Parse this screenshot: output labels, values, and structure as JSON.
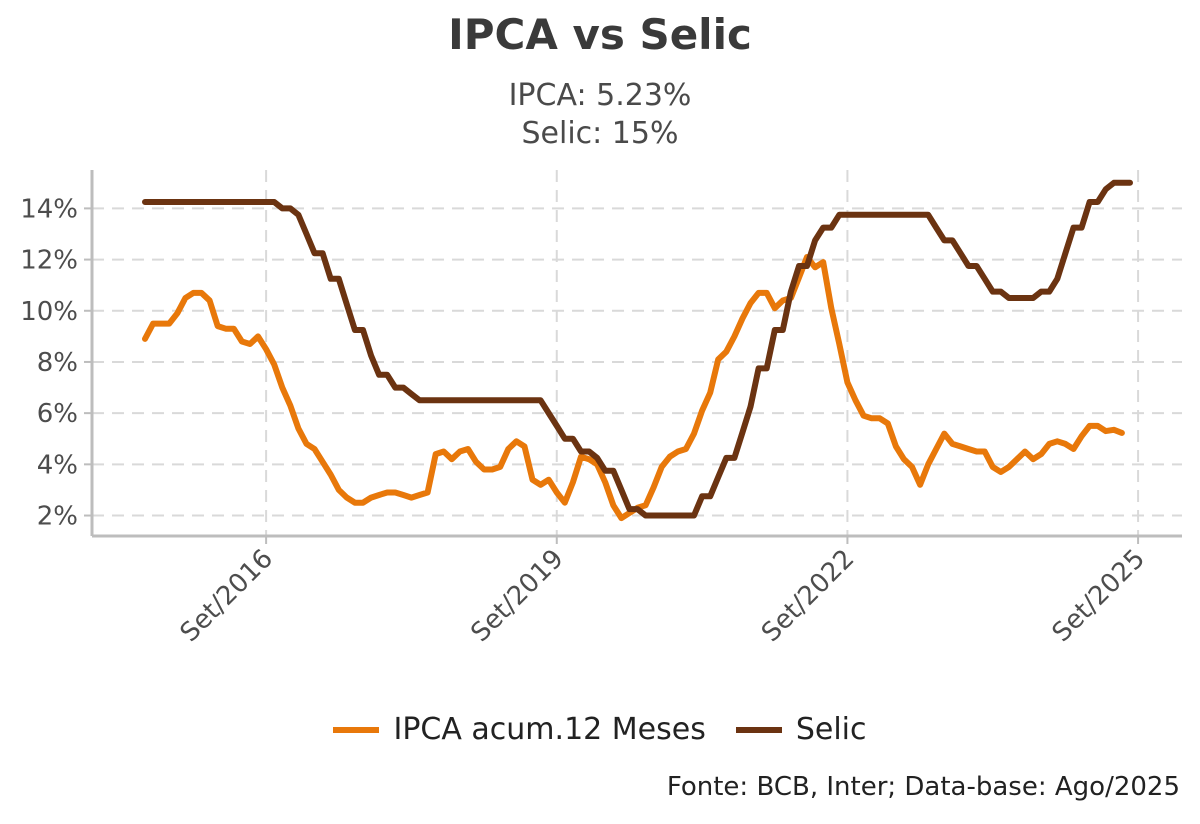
{
  "chart_data": {
    "type": "line",
    "title": "IPCA vs Selic",
    "subtitle_lines": [
      "IPCA: 5.23%",
      "Selic: 15%"
    ],
    "xlabel": "",
    "ylabel": "",
    "x_range": [
      "2015-06",
      "2025-08"
    ],
    "ylim": [
      1.2,
      15.5
    ],
    "y_ticks": [
      "2%",
      "4%",
      "6%",
      "8%",
      "10%",
      "12%",
      "14%"
    ],
    "y_tick_values": [
      2,
      4,
      6,
      8,
      10,
      12,
      14
    ],
    "x_ticks": [
      "Set/2016",
      "Set/2019",
      "Set/2022",
      "Set/2025"
    ],
    "x_tick_values": [
      "2016-09",
      "2019-09",
      "2022-09",
      "2025-09"
    ],
    "grid": true,
    "legend_position": "bottom",
    "colors": {
      "ipca": "#E8780A",
      "selic": "#6B3311",
      "grid": "#D9D9D9",
      "axis": "#BDBDBD"
    },
    "series": [
      {
        "name": "IPCA acum.12 Meses",
        "color": "#E8780A",
        "points": [
          [
            "2015-06",
            8.9
          ],
          [
            "2015-07",
            9.5
          ],
          [
            "2015-08",
            9.5
          ],
          [
            "2015-09",
            9.5
          ],
          [
            "2015-10",
            9.9
          ],
          [
            "2015-11",
            10.5
          ],
          [
            "2015-12",
            10.7
          ],
          [
            "2016-01",
            10.7
          ],
          [
            "2016-02",
            10.4
          ],
          [
            "2016-03",
            9.4
          ],
          [
            "2016-04",
            9.3
          ],
          [
            "2016-05",
            9.3
          ],
          [
            "2016-06",
            8.8
          ],
          [
            "2016-07",
            8.7
          ],
          [
            "2016-08",
            9.0
          ],
          [
            "2016-09",
            8.5
          ],
          [
            "2016-10",
            7.9
          ],
          [
            "2016-11",
            7.0
          ],
          [
            "2016-12",
            6.3
          ],
          [
            "2017-01",
            5.4
          ],
          [
            "2017-02",
            4.8
          ],
          [
            "2017-03",
            4.6
          ],
          [
            "2017-04",
            4.1
          ],
          [
            "2017-05",
            3.6
          ],
          [
            "2017-06",
            3.0
          ],
          [
            "2017-07",
            2.7
          ],
          [
            "2017-08",
            2.5
          ],
          [
            "2017-09",
            2.5
          ],
          [
            "2017-10",
            2.7
          ],
          [
            "2017-11",
            2.8
          ],
          [
            "2017-12",
            2.9
          ],
          [
            "2018-01",
            2.9
          ],
          [
            "2018-02",
            2.8
          ],
          [
            "2018-03",
            2.7
          ],
          [
            "2018-04",
            2.8
          ],
          [
            "2018-05",
            2.9
          ],
          [
            "2018-06",
            4.4
          ],
          [
            "2018-07",
            4.5
          ],
          [
            "2018-08",
            4.2
          ],
          [
            "2018-09",
            4.5
          ],
          [
            "2018-10",
            4.6
          ],
          [
            "2018-11",
            4.1
          ],
          [
            "2018-12",
            3.8
          ],
          [
            "2019-01",
            3.8
          ],
          [
            "2019-02",
            3.9
          ],
          [
            "2019-03",
            4.6
          ],
          [
            "2019-04",
            4.9
          ],
          [
            "2019-05",
            4.7
          ],
          [
            "2019-06",
            3.4
          ],
          [
            "2019-07",
            3.2
          ],
          [
            "2019-08",
            3.4
          ],
          [
            "2019-09",
            2.9
          ],
          [
            "2019-10",
            2.5
          ],
          [
            "2019-11",
            3.3
          ],
          [
            "2019-12",
            4.3
          ],
          [
            "2020-01",
            4.2
          ],
          [
            "2020-02",
            4.0
          ],
          [
            "2020-03",
            3.3
          ],
          [
            "2020-04",
            2.4
          ],
          [
            "2020-05",
            1.9
          ],
          [
            "2020-06",
            2.1
          ],
          [
            "2020-07",
            2.3
          ],
          [
            "2020-08",
            2.4
          ],
          [
            "2020-09",
            3.1
          ],
          [
            "2020-10",
            3.9
          ],
          [
            "2020-11",
            4.3
          ],
          [
            "2020-12",
            4.5
          ],
          [
            "2021-01",
            4.6
          ],
          [
            "2021-02",
            5.2
          ],
          [
            "2021-03",
            6.1
          ],
          [
            "2021-04",
            6.8
          ],
          [
            "2021-05",
            8.1
          ],
          [
            "2021-06",
            8.4
          ],
          [
            "2021-07",
            9.0
          ],
          [
            "2021-08",
            9.7
          ],
          [
            "2021-09",
            10.3
          ],
          [
            "2021-10",
            10.7
          ],
          [
            "2021-11",
            10.7
          ],
          [
            "2021-12",
            10.1
          ],
          [
            "2022-01",
            10.4
          ],
          [
            "2022-02",
            10.5
          ],
          [
            "2022-03",
            11.3
          ],
          [
            "2022-04",
            12.1
          ],
          [
            "2022-05",
            11.7
          ],
          [
            "2022-06",
            11.9
          ],
          [
            "2022-07",
            10.1
          ],
          [
            "2022-08",
            8.7
          ],
          [
            "2022-09",
            7.2
          ],
          [
            "2022-10",
            6.5
          ],
          [
            "2022-11",
            5.9
          ],
          [
            "2022-12",
            5.8
          ],
          [
            "2023-01",
            5.8
          ],
          [
            "2023-02",
            5.6
          ],
          [
            "2023-03",
            4.7
          ],
          [
            "2023-04",
            4.2
          ],
          [
            "2023-05",
            3.9
          ],
          [
            "2023-06",
            3.2
          ],
          [
            "2023-07",
            4.0
          ],
          [
            "2023-08",
            4.6
          ],
          [
            "2023-09",
            5.2
          ],
          [
            "2023-10",
            4.8
          ],
          [
            "2023-11",
            4.7
          ],
          [
            "2023-12",
            4.6
          ],
          [
            "2024-01",
            4.5
          ],
          [
            "2024-02",
            4.5
          ],
          [
            "2024-03",
            3.9
          ],
          [
            "2024-04",
            3.7
          ],
          [
            "2024-05",
            3.9
          ],
          [
            "2024-06",
            4.2
          ],
          [
            "2024-07",
            4.5
          ],
          [
            "2024-08",
            4.2
          ],
          [
            "2024-09",
            4.4
          ],
          [
            "2024-10",
            4.8
          ],
          [
            "2024-11",
            4.9
          ],
          [
            "2024-12",
            4.8
          ],
          [
            "2025-01",
            4.6
          ],
          [
            "2025-02",
            5.1
          ],
          [
            "2025-03",
            5.5
          ],
          [
            "2025-04",
            5.5
          ],
          [
            "2025-05",
            5.3
          ],
          [
            "2025-06",
            5.35
          ],
          [
            "2025-07",
            5.23
          ]
        ]
      },
      {
        "name": "Selic",
        "color": "#6B3311",
        "points": [
          [
            "2015-06",
            14.25
          ],
          [
            "2016-10",
            14.25
          ],
          [
            "2016-11",
            14.0
          ],
          [
            "2016-12",
            14.0
          ],
          [
            "2017-01",
            13.75
          ],
          [
            "2017-02",
            13.0
          ],
          [
            "2017-03",
            12.25
          ],
          [
            "2017-04",
            12.25
          ],
          [
            "2017-05",
            11.25
          ],
          [
            "2017-06",
            11.25
          ],
          [
            "2017-07",
            10.25
          ],
          [
            "2017-08",
            9.25
          ],
          [
            "2017-09",
            9.25
          ],
          [
            "2017-10",
            8.25
          ],
          [
            "2017-11",
            7.5
          ],
          [
            "2017-12",
            7.5
          ],
          [
            "2018-01",
            7.0
          ],
          [
            "2018-02",
            7.0
          ],
          [
            "2018-03",
            6.75
          ],
          [
            "2018-04",
            6.5
          ],
          [
            "2019-07",
            6.5
          ],
          [
            "2019-08",
            6.0
          ],
          [
            "2019-09",
            5.5
          ],
          [
            "2019-10",
            5.0
          ],
          [
            "2019-11",
            5.0
          ],
          [
            "2019-12",
            4.5
          ],
          [
            "2020-01",
            4.5
          ],
          [
            "2020-02",
            4.25
          ],
          [
            "2020-03",
            3.75
          ],
          [
            "2020-04",
            3.75
          ],
          [
            "2020-05",
            3.0
          ],
          [
            "2020-06",
            2.25
          ],
          [
            "2020-07",
            2.25
          ],
          [
            "2020-08",
            2.0
          ],
          [
            "2021-02",
            2.0
          ],
          [
            "2021-03",
            2.75
          ],
          [
            "2021-04",
            2.75
          ],
          [
            "2021-05",
            3.5
          ],
          [
            "2021-06",
            4.25
          ],
          [
            "2021-07",
            4.25
          ],
          [
            "2021-08",
            5.25
          ],
          [
            "2021-09",
            6.25
          ],
          [
            "2021-10",
            7.75
          ],
          [
            "2021-11",
            7.75
          ],
          [
            "2021-12",
            9.25
          ],
          [
            "2022-01",
            9.25
          ],
          [
            "2022-02",
            10.75
          ],
          [
            "2022-03",
            11.75
          ],
          [
            "2022-04",
            11.75
          ],
          [
            "2022-05",
            12.75
          ],
          [
            "2022-06",
            13.25
          ],
          [
            "2022-07",
            13.25
          ],
          [
            "2022-08",
            13.75
          ],
          [
            "2023-07",
            13.75
          ],
          [
            "2023-08",
            13.25
          ],
          [
            "2023-09",
            12.75
          ],
          [
            "2023-10",
            12.75
          ],
          [
            "2023-11",
            12.25
          ],
          [
            "2023-12",
            11.75
          ],
          [
            "2024-01",
            11.75
          ],
          [
            "2024-02",
            11.25
          ],
          [
            "2024-03",
            10.75
          ],
          [
            "2024-04",
            10.75
          ],
          [
            "2024-05",
            10.5
          ],
          [
            "2024-08",
            10.5
          ],
          [
            "2024-09",
            10.75
          ],
          [
            "2024-10",
            10.75
          ],
          [
            "2024-11",
            11.25
          ],
          [
            "2024-12",
            12.25
          ],
          [
            "2025-01",
            13.25
          ],
          [
            "2025-02",
            13.25
          ],
          [
            "2025-03",
            14.25
          ],
          [
            "2025-04",
            14.25
          ],
          [
            "2025-05",
            14.75
          ],
          [
            "2025-06",
            15.0
          ],
          [
            "2025-08",
            15.0
          ]
        ]
      }
    ],
    "source": "Fonte: BCB, Inter; Data-base: Ago/2025"
  }
}
